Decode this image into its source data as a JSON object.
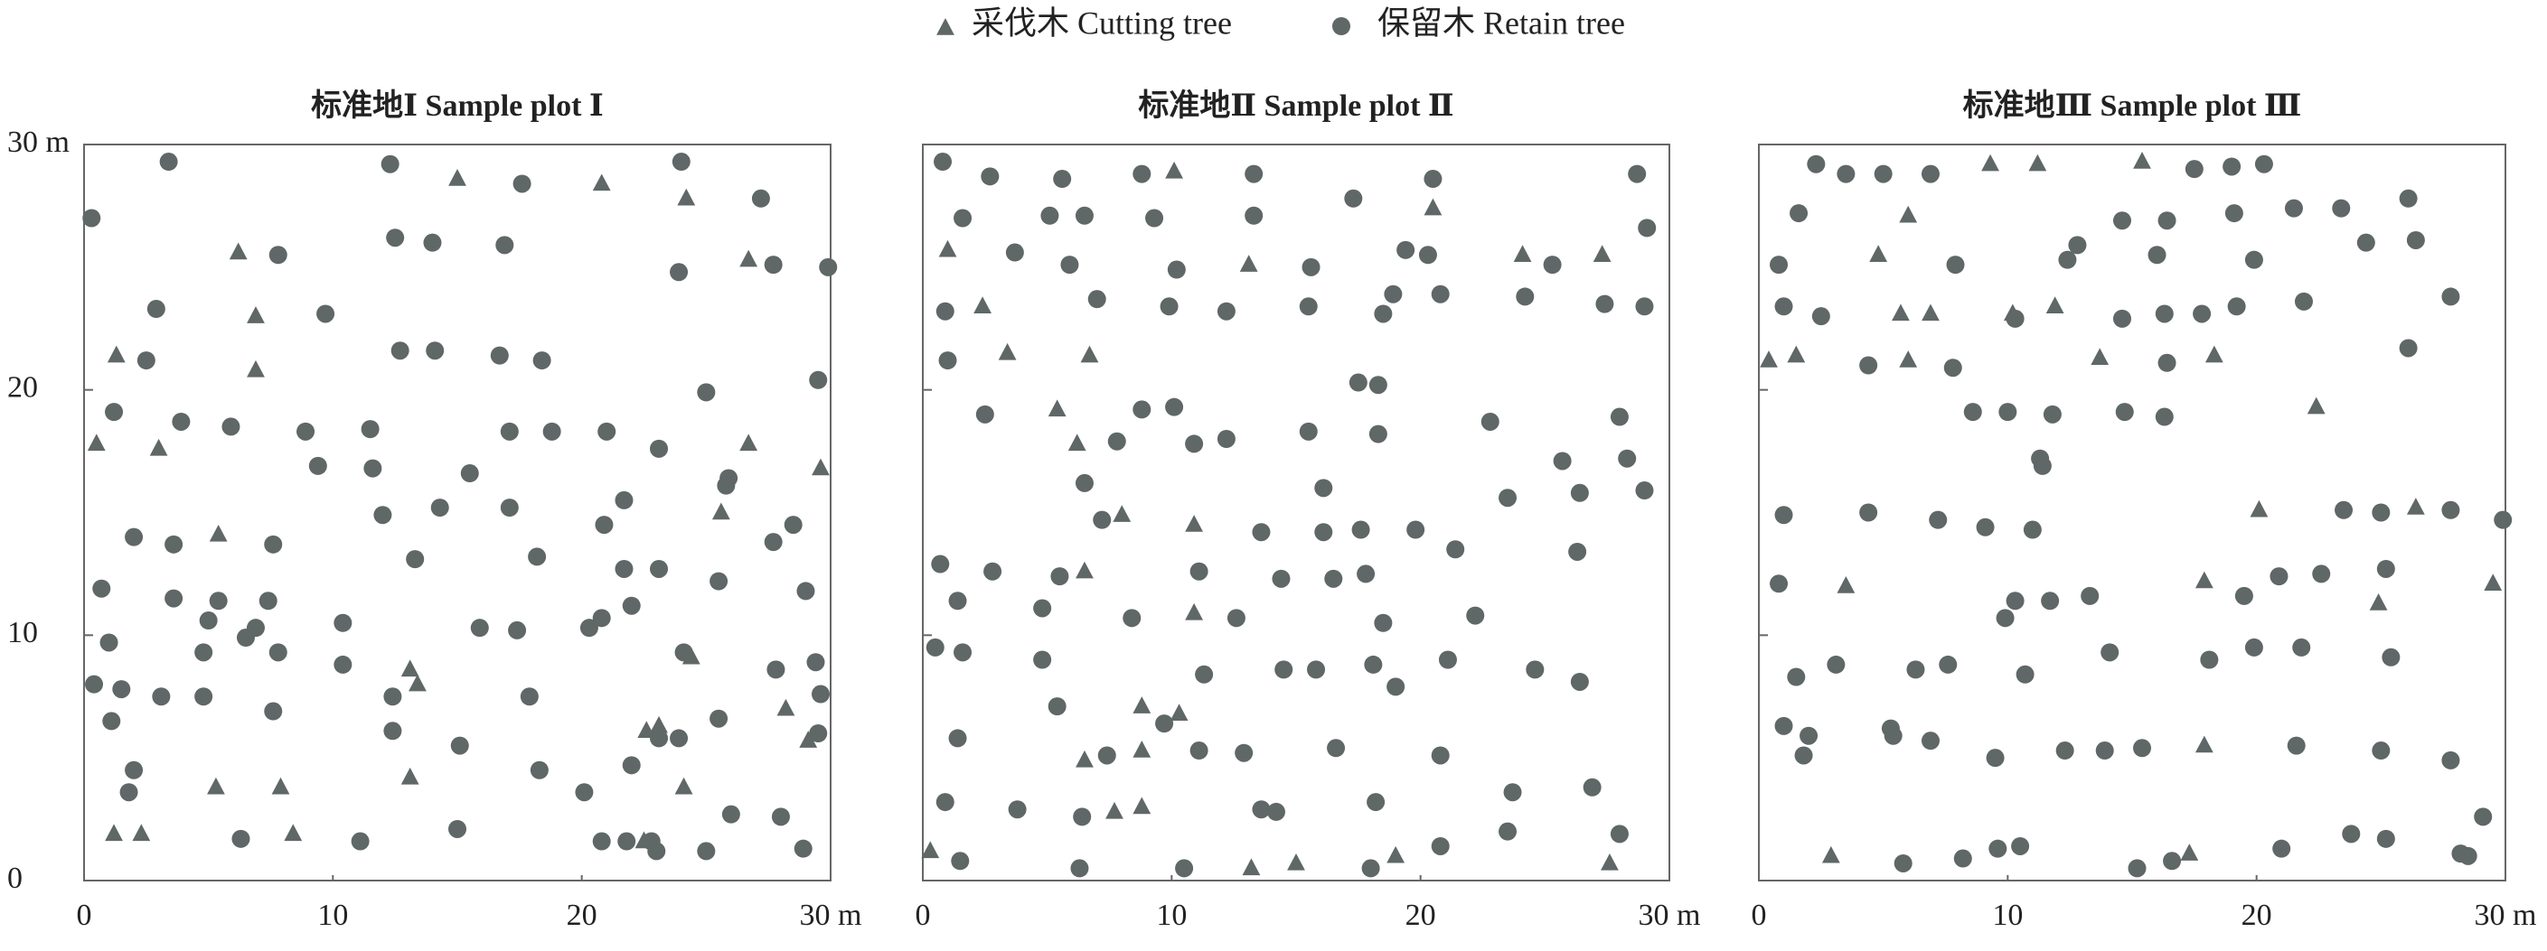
{
  "chart_data": [
    {
      "type": "scatter",
      "title": "标准地Ⅰ Sample plot Ⅰ",
      "xlim": [
        0,
        30
      ],
      "ylim": [
        0,
        30
      ],
      "xticks": [
        0,
        10,
        20,
        {
          "value": 30,
          "label": "30 m"
        }
      ],
      "yticks": [
        0,
        10,
        20,
        {
          "value": 30,
          "label": "30 m"
        }
      ],
      "ytick_labels": true,
      "series": [
        {
          "name": "采伐木 Cutting tree",
          "color": "#5f6767",
          "marker": "triangle",
          "x": [
            0.5,
            1.3,
            3.0,
            1.2,
            2.3,
            5.4,
            5.3,
            6.2,
            6.9,
            6.9,
            7.9,
            8.4,
            13.1,
            13.4,
            13.1,
            15.0,
            20.8,
            24.2,
            26.7,
            29.6,
            25.6,
            22.6,
            23.1,
            24.1,
            22.5,
            24.4,
            28.2,
            29.1,
            26.7
          ],
          "y": [
            17.8,
            21.4,
            17.6,
            1.9,
            1.9,
            14.1,
            3.8,
            25.6,
            23.0,
            20.8,
            3.8,
            1.9,
            8.6,
            8.0,
            4.2,
            28.6,
            28.4,
            27.8,
            25.3,
            16.8,
            15.0,
            6.1,
            6.3,
            3.8,
            1.6,
            9.1,
            7.0,
            5.7,
            17.8
          ]
        },
        {
          "name": "保留木 Retain tree",
          "color": "#5f6767",
          "marker": "circle",
          "x": [
            0.3,
            3.4,
            12.3,
            17.6,
            24.0,
            27.2,
            7.8,
            12.5,
            14.0,
            16.9,
            23.9,
            27.7,
            29.9,
            2.9,
            9.7,
            2.5,
            12.7,
            14.1,
            16.7,
            18.4,
            1.2,
            3.9,
            5.9,
            8.9,
            11.5,
            15.5,
            17.1,
            18.8,
            21.0,
            23.1,
            25.0,
            29.5,
            2.0,
            3.6,
            7.6,
            11.6,
            9.4,
            12.0,
            14.3,
            17.1,
            20.9,
            21.7,
            25.9,
            25.8,
            28.5,
            27.7,
            0.7,
            3.6,
            5.4,
            5.0,
            6.9,
            7.4,
            1.0,
            6.5,
            7.8,
            10.4,
            13.3,
            18.2,
            21.7,
            22.0,
            20.3,
            20.8,
            15.9,
            17.4,
            23.1,
            25.5,
            29.0,
            4.8,
            4.8,
            3.1,
            1.1,
            1.5,
            0.4,
            10.4,
            12.4,
            12.4,
            7.6,
            17.9,
            23.9,
            22.0,
            23.1,
            27.8,
            29.4,
            29.6,
            29.5,
            25.5,
            2.0,
            1.8,
            15.1,
            18.3,
            20.1,
            6.3,
            11.1,
            15.0,
            20.8,
            21.8,
            22.8,
            23.0,
            25.0,
            26.0,
            28.0,
            28.9,
            24.1
          ],
          "y": [
            27.0,
            29.3,
            29.2,
            28.4,
            29.3,
            27.8,
            25.5,
            26.2,
            26.0,
            25.9,
            24.8,
            25.1,
            25.0,
            23.3,
            23.1,
            21.2,
            21.6,
            21.6,
            21.4,
            21.2,
            19.1,
            18.7,
            18.5,
            18.3,
            18.4,
            16.6,
            18.3,
            18.3,
            18.3,
            17.6,
            19.9,
            20.4,
            14.0,
            13.7,
            13.7,
            16.8,
            16.9,
            14.9,
            15.2,
            15.2,
            14.5,
            15.5,
            16.4,
            16.1,
            14.5,
            13.8,
            11.9,
            11.5,
            11.4,
            10.6,
            10.3,
            11.4,
            9.7,
            9.9,
            9.3,
            10.5,
            13.1,
            13.2,
            12.7,
            11.2,
            10.3,
            10.7,
            10.3,
            10.2,
            12.7,
            12.2,
            11.8,
            9.3,
            7.5,
            7.5,
            6.5,
            7.8,
            8.0,
            8.8,
            7.5,
            6.1,
            6.9,
            7.5,
            5.8,
            4.7,
            5.8,
            8.6,
            8.9,
            7.6,
            6.0,
            6.6,
            4.5,
            3.6,
            5.5,
            4.5,
            3.6,
            1.7,
            1.6,
            2.1,
            1.6,
            1.6,
            1.6,
            1.2,
            1.2,
            2.7,
            2.6,
            1.3,
            9.3
          ]
        }
      ]
    },
    {
      "type": "scatter",
      "title": "标准地Ⅱ Sample plot Ⅱ",
      "xlim": [
        0,
        30
      ],
      "ylim": [
        0,
        30
      ],
      "xticks": [
        0,
        10,
        20,
        {
          "value": 30,
          "label": "30 m"
        }
      ],
      "yticks": [
        0,
        10,
        20
      ],
      "ytick_labels": false,
      "series": [
        {
          "name": "采伐木 Cutting tree",
          "color": "#5f6767",
          "marker": "triangle",
          "x": [
            1.0,
            2.4,
            3.4,
            5.4,
            6.2,
            6.7,
            8.0,
            6.5,
            10.9,
            10.9,
            8.8,
            10.3,
            8.8,
            6.5,
            8.8,
            7.7,
            10.1,
            13.1,
            20.5,
            24.1,
            27.3,
            0.3,
            15.0,
            13.2,
            19.0,
            27.6
          ],
          "y": [
            25.7,
            23.4,
            21.5,
            19.2,
            17.8,
            21.4,
            14.9,
            12.6,
            14.5,
            10.9,
            7.1,
            6.8,
            5.3,
            4.9,
            3.0,
            2.8,
            28.9,
            25.1,
            27.4,
            25.5,
            25.5,
            1.2,
            0.7,
            0.5,
            1.0,
            0.7
          ]
        },
        {
          "name": "保留木 Retain tree",
          "color": "#5f6767",
          "marker": "circle",
          "x": [
            0.8,
            2.7,
            5.6,
            8.8,
            13.3,
            20.5,
            28.7,
            1.6,
            5.1,
            6.5,
            9.3,
            13.3,
            17.3,
            3.7,
            5.9,
            10.2,
            15.6,
            19.4,
            20.3,
            25.3,
            29.1,
            0.9,
            7.0,
            9.9,
            12.2,
            15.5,
            18.5,
            18.9,
            20.8,
            24.2,
            27.4,
            29.0,
            1.0,
            2.5,
            8.8,
            10.1,
            7.8,
            10.9,
            12.2,
            15.5,
            17.5,
            18.3,
            18.3,
            22.8,
            28.0,
            28.3,
            25.7,
            6.5,
            7.2,
            16.1,
            23.5,
            26.4,
            29.0,
            0.7,
            2.8,
            5.5,
            11.1,
            13.6,
            14.4,
            16.1,
            16.5,
            17.6,
            17.8,
            19.8,
            21.4,
            26.3,
            1.4,
            4.8,
            8.4,
            12.6,
            18.5,
            22.2,
            0.5,
            1.6,
            4.8,
            11.3,
            14.5,
            15.8,
            18.1,
            19.0,
            21.1,
            24.6,
            26.4,
            5.4,
            9.7,
            1.4,
            7.4,
            11.1,
            12.9,
            16.6,
            20.8,
            0.9,
            3.8,
            6.4,
            13.6,
            14.2,
            18.2,
            23.7,
            26.9,
            1.5,
            6.3,
            10.5,
            18.0,
            20.8,
            23.5,
            28.0
          ],
          "y": [
            29.3,
            28.7,
            28.6,
            28.8,
            28.8,
            28.6,
            28.8,
            27.0,
            27.1,
            27.1,
            27.0,
            27.1,
            27.8,
            25.6,
            25.1,
            24.9,
            25.0,
            25.7,
            25.5,
            25.1,
            26.6,
            23.2,
            23.7,
            23.4,
            23.2,
            23.4,
            23.1,
            23.9,
            23.9,
            23.8,
            23.5,
            23.4,
            21.2,
            19.0,
            19.2,
            19.3,
            17.9,
            17.8,
            18.0,
            18.3,
            20.3,
            20.2,
            18.2,
            18.7,
            18.9,
            17.2,
            17.1,
            16.2,
            14.7,
            16.0,
            15.6,
            15.8,
            15.9,
            12.9,
            12.6,
            12.4,
            12.6,
            14.2,
            12.3,
            14.2,
            12.3,
            14.3,
            12.5,
            14.3,
            13.5,
            13.4,
            11.4,
            11.1,
            10.7,
            10.7,
            10.5,
            10.8,
            9.5,
            9.3,
            9.0,
            8.4,
            8.6,
            8.6,
            8.8,
            7.9,
            9.0,
            8.6,
            8.1,
            7.1,
            6.4,
            5.8,
            5.1,
            5.3,
            5.2,
            5.4,
            5.1,
            3.2,
            2.9,
            2.6,
            2.9,
            2.8,
            3.2,
            3.6,
            3.8,
            0.8,
            0.5,
            0.5,
            0.5,
            1.4,
            2.0,
            1.9
          ]
        }
      ]
    },
    {
      "type": "scatter",
      "title": "标准地Ⅲ Sample plot Ⅲ",
      "xlim": [
        0,
        30
      ],
      "ylim": [
        0,
        30
      ],
      "xticks": [
        0,
        10,
        20,
        {
          "value": 30,
          "label": "30 m"
        }
      ],
      "yticks": [
        0,
        10,
        20
      ],
      "ytick_labels": false,
      "series": [
        {
          "name": "采伐木 Cutting tree",
          "color": "#5f6767",
          "marker": "triangle",
          "x": [
            0.4,
            1.5,
            4.8,
            6.0,
            5.7,
            6.9,
            6.0,
            9.3,
            11.2,
            10.2,
            11.9,
            13.7,
            15.4,
            18.3,
            22.4,
            3.5,
            17.9,
            20.1,
            26.4,
            29.5,
            24.9,
            17.9,
            2.9,
            17.3
          ],
          "y": [
            21.2,
            21.4,
            25.5,
            27.1,
            23.1,
            23.1,
            21.2,
            29.2,
            29.2,
            23.1,
            23.4,
            21.3,
            29.3,
            21.4,
            19.3,
            12.0,
            12.2,
            15.1,
            15.2,
            12.1,
            11.3,
            5.5,
            1.0,
            1.1
          ]
        },
        {
          "name": "保留木 Retain tree",
          "color": "#5f6767",
          "marker": "circle",
          "x": [
            2.3,
            3.5,
            5.0,
            6.9,
            17.5,
            19.0,
            20.3,
            1.6,
            12.8,
            14.6,
            16.4,
            19.1,
            21.5,
            23.4,
            26.1,
            0.8,
            7.9,
            12.4,
            16.0,
            19.9,
            24.4,
            26.4,
            1.0,
            2.5,
            10.3,
            14.6,
            16.3,
            17.8,
            19.2,
            21.9,
            27.8,
            4.4,
            7.8,
            16.4,
            26.1,
            8.6,
            10.0,
            11.8,
            14.7,
            16.3,
            11.3,
            11.4,
            1.0,
            4.4,
            7.2,
            9.1,
            11.0,
            23.5,
            25.0,
            27.8,
            29.9,
            0.8,
            10.3,
            11.7,
            13.3,
            19.5,
            20.9,
            22.6,
            25.2,
            9.9,
            1.5,
            3.1,
            6.3,
            7.6,
            10.7,
            14.1,
            18.1,
            19.9,
            21.8,
            25.4,
            1.0,
            2.0,
            1.8,
            5.3,
            5.4,
            6.9,
            9.5,
            12.3,
            13.9,
            15.4,
            21.6,
            25.0,
            27.8,
            29.1,
            5.8,
            8.2,
            9.6,
            10.5,
            15.2,
            16.6,
            21.0,
            23.8,
            25.2,
            28.2,
            28.5
          ],
          "y": [
            29.2,
            28.8,
            28.8,
            28.8,
            29.0,
            29.1,
            29.2,
            27.2,
            25.9,
            26.9,
            26.9,
            27.2,
            27.4,
            27.4,
            27.8,
            25.1,
            25.1,
            25.3,
            25.5,
            25.3,
            26.0,
            26.1,
            23.4,
            23.0,
            22.9,
            22.9,
            23.1,
            23.1,
            23.4,
            23.6,
            23.8,
            21.0,
            20.9,
            21.1,
            21.7,
            19.1,
            19.1,
            19.0,
            19.1,
            18.9,
            17.2,
            16.9,
            14.9,
            15.0,
            14.7,
            14.4,
            14.3,
            15.1,
            15.0,
            15.1,
            14.7,
            12.1,
            11.4,
            11.4,
            11.6,
            11.6,
            12.4,
            12.5,
            12.7,
            10.7,
            8.3,
            8.8,
            8.6,
            8.8,
            8.4,
            9.3,
            9.0,
            9.5,
            9.5,
            9.1,
            6.3,
            5.9,
            5.1,
            6.2,
            5.9,
            5.7,
            5.0,
            5.3,
            5.3,
            5.4,
            5.5,
            5.3,
            4.9,
            2.6,
            0.7,
            0.9,
            1.3,
            1.4,
            0.5,
            0.8,
            1.3,
            1.9,
            1.7,
            1.1,
            1.0
          ]
        }
      ]
    }
  ]
}
